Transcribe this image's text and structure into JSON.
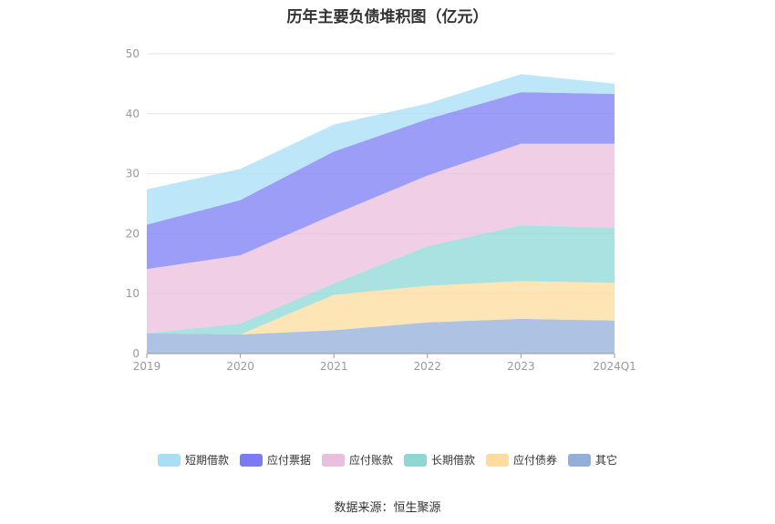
{
  "title": "历年主要负债堆积图（亿元）",
  "source": "数据来源：恒生聚源",
  "chart_data": {
    "type": "area",
    "stacked": true,
    "title": "历年主要负债堆积图（亿元）",
    "categories": [
      "2019",
      "2020",
      "2021",
      "2022",
      "2023",
      "2024Q1"
    ],
    "y_ticks": [
      "0",
      "10",
      "20",
      "30",
      "40",
      "50"
    ],
    "ylim": [
      0,
      50
    ],
    "grid": true,
    "legend_position": "bottom",
    "series": [
      {
        "name": "其它",
        "color": "#93aed9",
        "values": [
          3.4,
          3.2,
          3.9,
          5.2,
          5.8,
          5.5
        ]
      },
      {
        "name": "应付债券",
        "color": "#fddc9c",
        "values": [
          0.0,
          0.0,
          5.9,
          6.1,
          6.3,
          6.3
        ]
      },
      {
        "name": "长期借款",
        "color": "#8dd7d7",
        "values": [
          0.0,
          1.8,
          1.9,
          6.6,
          9.3,
          9.2
        ]
      },
      {
        "name": "应付账款",
        "color": "#eabedd",
        "values": [
          10.7,
          11.4,
          11.5,
          11.8,
          13.6,
          14.0
        ]
      },
      {
        "name": "应付票据",
        "color": "#7b7cf4",
        "values": [
          7.4,
          9.2,
          10.5,
          9.4,
          8.6,
          8.3
        ]
      },
      {
        "name": "短期借款",
        "color": "#a7dff7",
        "values": [
          5.9,
          5.2,
          4.5,
          2.6,
          3.0,
          1.7
        ]
      }
    ],
    "legend_order": [
      "短期借款",
      "应付票据",
      "应付账款",
      "长期借款",
      "应付债券",
      "其它"
    ]
  }
}
